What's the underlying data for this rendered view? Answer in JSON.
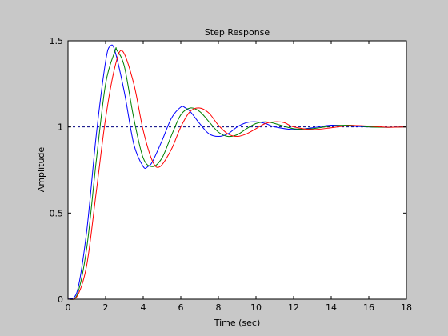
{
  "chart_data": {
    "type": "line",
    "title": "Step Response",
    "xlabel": "Time (sec)",
    "ylabel": "Amplitude",
    "xlim": [
      0,
      18
    ],
    "ylim": [
      0,
      1.5
    ],
    "xticks": [
      0,
      2,
      4,
      6,
      8,
      10,
      12,
      14,
      16,
      18
    ],
    "yticks": [
      0,
      0.5,
      1,
      1.5
    ],
    "xtick_labels": [
      "0",
      "2",
      "4",
      "6",
      "8",
      "10",
      "12",
      "14",
      "16",
      "18"
    ],
    "ytick_labels": [
      "0",
      "0.5",
      "1",
      "1.5"
    ],
    "grid": false,
    "legend": "none",
    "reference_line": {
      "y": 1,
      "style": "dashed",
      "color": "#000080"
    },
    "series": [
      {
        "color": "#0000ff",
        "x": [
          0,
          0.5,
          1.0,
          1.5,
          2.0,
          2.25,
          2.5,
          3.0,
          3.5,
          4.0,
          4.25,
          4.5,
          5.0,
          5.5,
          6.0,
          6.25,
          6.5,
          7.0,
          7.5,
          8.0,
          8.5,
          9.0,
          9.5,
          10.0,
          10.5,
          11.0,
          12.0,
          13.0,
          14.0,
          15.0,
          16.0,
          17.0,
          18.0
        ],
        "y": [
          0,
          0.05,
          0.4,
          0.95,
          1.38,
          1.47,
          1.44,
          1.2,
          0.9,
          0.77,
          0.77,
          0.8,
          0.92,
          1.05,
          1.115,
          1.11,
          1.09,
          1.02,
          0.96,
          0.945,
          0.96,
          1.0,
          1.025,
          1.03,
          1.02,
          1.0,
          0.985,
          0.995,
          1.01,
          1.005,
          1.0,
          0.998,
          1.0
        ]
      },
      {
        "color": "#008000",
        "x": [
          0,
          0.5,
          1.0,
          1.5,
          2.0,
          2.5,
          2.6,
          3.0,
          3.5,
          4.0,
          4.5,
          5.0,
          5.5,
          6.0,
          6.5,
          7.0,
          7.5,
          8.0,
          8.5,
          9.0,
          9.5,
          10.0,
          10.5,
          11.0,
          12.0,
          13.0,
          14.0,
          15.0,
          16.0,
          17.0,
          18.0
        ],
        "y": [
          0,
          0.03,
          0.3,
          0.8,
          1.25,
          1.44,
          1.445,
          1.35,
          1.05,
          0.82,
          0.77,
          0.82,
          0.95,
          1.07,
          1.11,
          1.09,
          1.03,
          0.97,
          0.945,
          0.955,
          0.99,
          1.02,
          1.03,
          1.02,
          0.99,
          0.99,
          1.005,
          1.01,
          1.0,
          0.998,
          1.0
        ]
      },
      {
        "color": "#ff0000",
        "x": [
          0,
          0.5,
          1.0,
          1.5,
          2.0,
          2.5,
          2.9,
          3.5,
          4.0,
          4.5,
          4.9,
          5.5,
          6.0,
          6.5,
          7.0,
          7.5,
          8.0,
          8.5,
          9.0,
          9.5,
          10.0,
          10.5,
          11.0,
          11.5,
          12.0,
          13.0,
          14.0,
          15.0,
          16.0,
          17.0,
          18.0
        ],
        "y": [
          0,
          0.02,
          0.2,
          0.62,
          1.05,
          1.35,
          1.44,
          1.25,
          0.98,
          0.8,
          0.77,
          0.87,
          1.0,
          1.09,
          1.11,
          1.08,
          1.01,
          0.96,
          0.945,
          0.96,
          0.99,
          1.02,
          1.03,
          1.025,
          1.0,
          0.985,
          0.995,
          1.008,
          1.005,
          0.998,
          1.0
        ]
      }
    ]
  }
}
